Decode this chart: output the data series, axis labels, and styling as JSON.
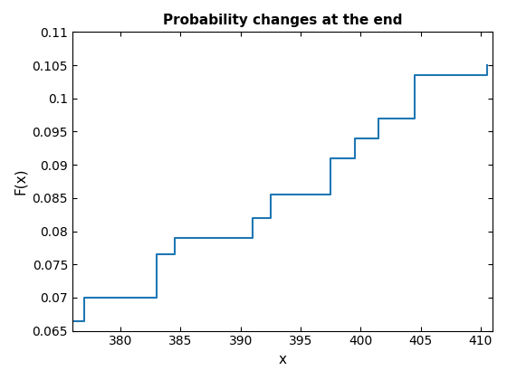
{
  "title": "Probability changes at the end",
  "xlabel": "x",
  "ylabel": "F(x)",
  "xlim": [
    376,
    411
  ],
  "ylim": [
    0.065,
    0.11
  ],
  "xticks": [
    380,
    385,
    390,
    395,
    400,
    405,
    410
  ],
  "yticks": [
    0.065,
    0.07,
    0.075,
    0.08,
    0.085,
    0.09,
    0.095,
    0.1,
    0.105,
    0.11
  ],
  "line_color": "#1f77b4",
  "line_width": 1.5,
  "step_x": [
    376.0,
    377.0,
    383.0,
    384.5,
    391.0,
    392.5,
    397.5,
    399.5,
    401.5,
    404.5,
    410.0,
    410.5
  ],
  "step_y": [
    0.0665,
    0.07,
    0.0765,
    0.079,
    0.082,
    0.0855,
    0.091,
    0.094,
    0.097,
    0.1035,
    0.1035,
    0.105
  ]
}
